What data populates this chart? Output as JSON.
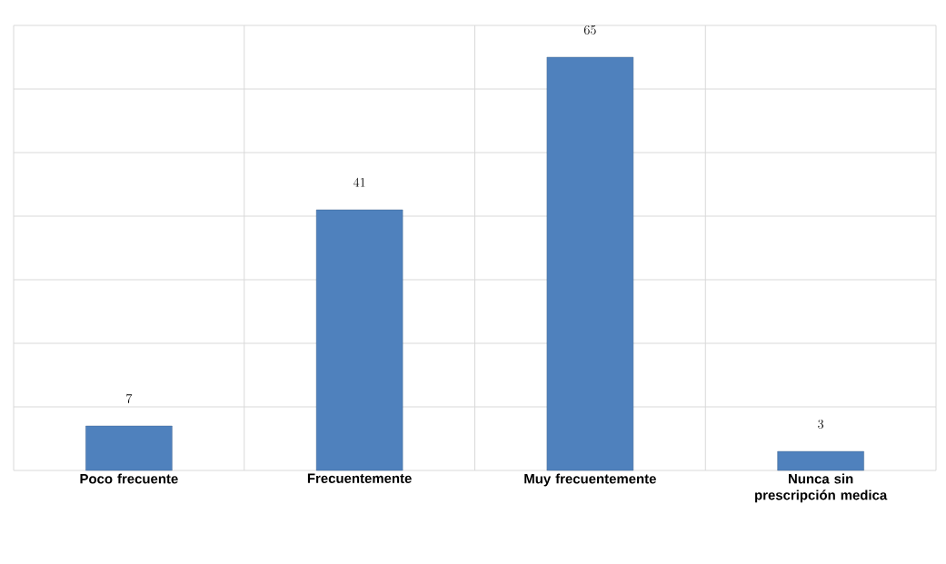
{
  "chart_data": {
    "type": "bar",
    "categories": [
      "Poco frecuente",
      "Frecuentemente",
      "Muy frecuentemente",
      "Nunca sin prescripción medica"
    ],
    "values": [
      7,
      41,
      65,
      3
    ],
    "color": "#4f81bd",
    "data_labels": true,
    "ylim": [
      0,
      70
    ],
    "yticks": [
      {
        "value": 0,
        "label": null
      },
      {
        "value": 10,
        "label": null
      },
      {
        "value": 20,
        "label": null
      },
      {
        "value": 30,
        "label": null
      },
      {
        "value": 40,
        "label": null
      },
      {
        "value": 50,
        "label": null
      },
      {
        "value": 60,
        "label": null
      },
      {
        "value": 70,
        "label": null
      }
    ],
    "grid": true
  }
}
